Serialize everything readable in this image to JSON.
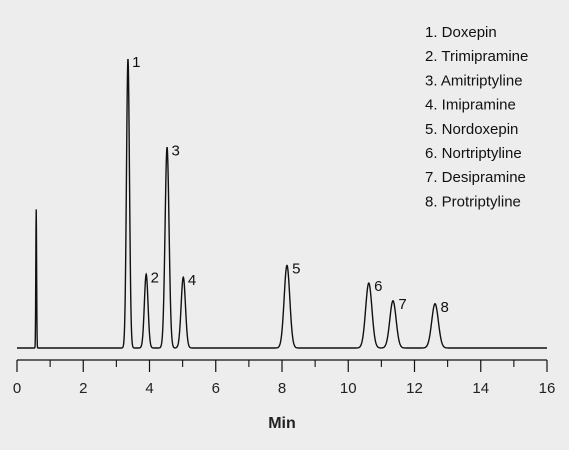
{
  "chart_data": {
    "type": "line",
    "xlabel": "Min",
    "ylabel": "",
    "xlim": [
      0,
      16
    ],
    "ylim": [
      0,
      1
    ],
    "x_ticks": [
      "0",
      "2",
      "4",
      "6",
      "8",
      "10",
      "12",
      "14",
      "16"
    ],
    "x_ticks_minor": [
      1,
      3,
      5,
      7,
      9,
      11,
      13,
      15
    ],
    "grid": false,
    "legend_position": "top-right",
    "injection_spike": {
      "x": 0.58,
      "height": 0.47
    },
    "peaks": [
      {
        "label": "1",
        "name": "Doxepin",
        "x": 3.35,
        "height": 0.98,
        "width": 0.045
      },
      {
        "label": "2",
        "name": "Trimipramine",
        "x": 3.9,
        "height": 0.25,
        "width": 0.055
      },
      {
        "label": "3",
        "name": "Amitriptyline",
        "x": 4.53,
        "height": 0.68,
        "width": 0.06
      },
      {
        "label": "4",
        "name": "Imipramine",
        "x": 5.02,
        "height": 0.24,
        "width": 0.065
      },
      {
        "label": "5",
        "name": "Nordoxepin",
        "x": 8.15,
        "height": 0.28,
        "width": 0.085
      },
      {
        "label": "6",
        "name": "Nortriptyline",
        "x": 10.62,
        "height": 0.22,
        "width": 0.095
      },
      {
        "label": "7",
        "name": "Desipramine",
        "x": 11.35,
        "height": 0.16,
        "width": 0.095
      },
      {
        "label": "8",
        "name": "Protriptyline",
        "x": 12.62,
        "height": 0.15,
        "width": 0.1
      }
    ],
    "legend": [
      "1. Doxepin",
      "2. Trimipramine",
      "3. Amitriptyline",
      "4. Imipramine",
      "5. Nordoxepin",
      "6. Nortriptyline",
      "7. Desipramine",
      "8. Protriptyline"
    ]
  }
}
